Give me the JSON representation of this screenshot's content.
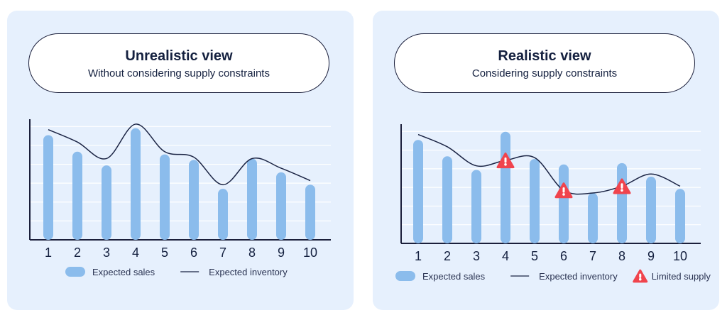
{
  "chart_data": [
    {
      "type": "bar",
      "title": "Unrealistic view",
      "subtitle": "Without considering supply constraints",
      "categories": [
        "1",
        "2",
        "3",
        "4",
        "5",
        "6",
        "7",
        "8",
        "9",
        "10"
      ],
      "series": [
        {
          "name": "Expected sales",
          "type": "bar",
          "values": [
            76,
            64,
            54,
            81,
            62,
            58,
            37,
            59,
            49,
            40
          ]
        },
        {
          "name": "Expected inventory",
          "type": "line",
          "values": [
            80,
            71,
            59,
            84,
            64,
            60,
            40,
            59,
            52,
            43
          ]
        }
      ],
      "ylim": [
        0,
        85
      ],
      "grid": true,
      "legend": "bottom"
    },
    {
      "type": "bar",
      "title": "Realistic view",
      "subtitle": "Considering supply constraints",
      "categories": [
        "1",
        "2",
        "3",
        "4",
        "5",
        "6",
        "7",
        "8",
        "9",
        "10"
      ],
      "series": [
        {
          "name": "Expected sales",
          "type": "bar",
          "values": [
            76,
            64,
            54,
            82,
            62,
            58,
            37,
            59,
            49,
            40
          ]
        },
        {
          "name": "Expected inventory",
          "type": "line",
          "values": [
            80,
            71,
            57,
            61,
            63,
            39,
            37,
            42,
            51,
            42
          ]
        }
      ],
      "limited_supply_at": [
        "4",
        "6",
        "8"
      ],
      "limited_supply_label": "Limited supply",
      "ylim": [
        0,
        85
      ],
      "grid": true,
      "legend": "bottom"
    }
  ],
  "colors": {
    "bar": "#8bbcec",
    "line": "#1b2444",
    "axis": "#1b1f3b",
    "grid": "#ffffff",
    "warning": "#f0444d",
    "panel": "#e6f0fd"
  }
}
